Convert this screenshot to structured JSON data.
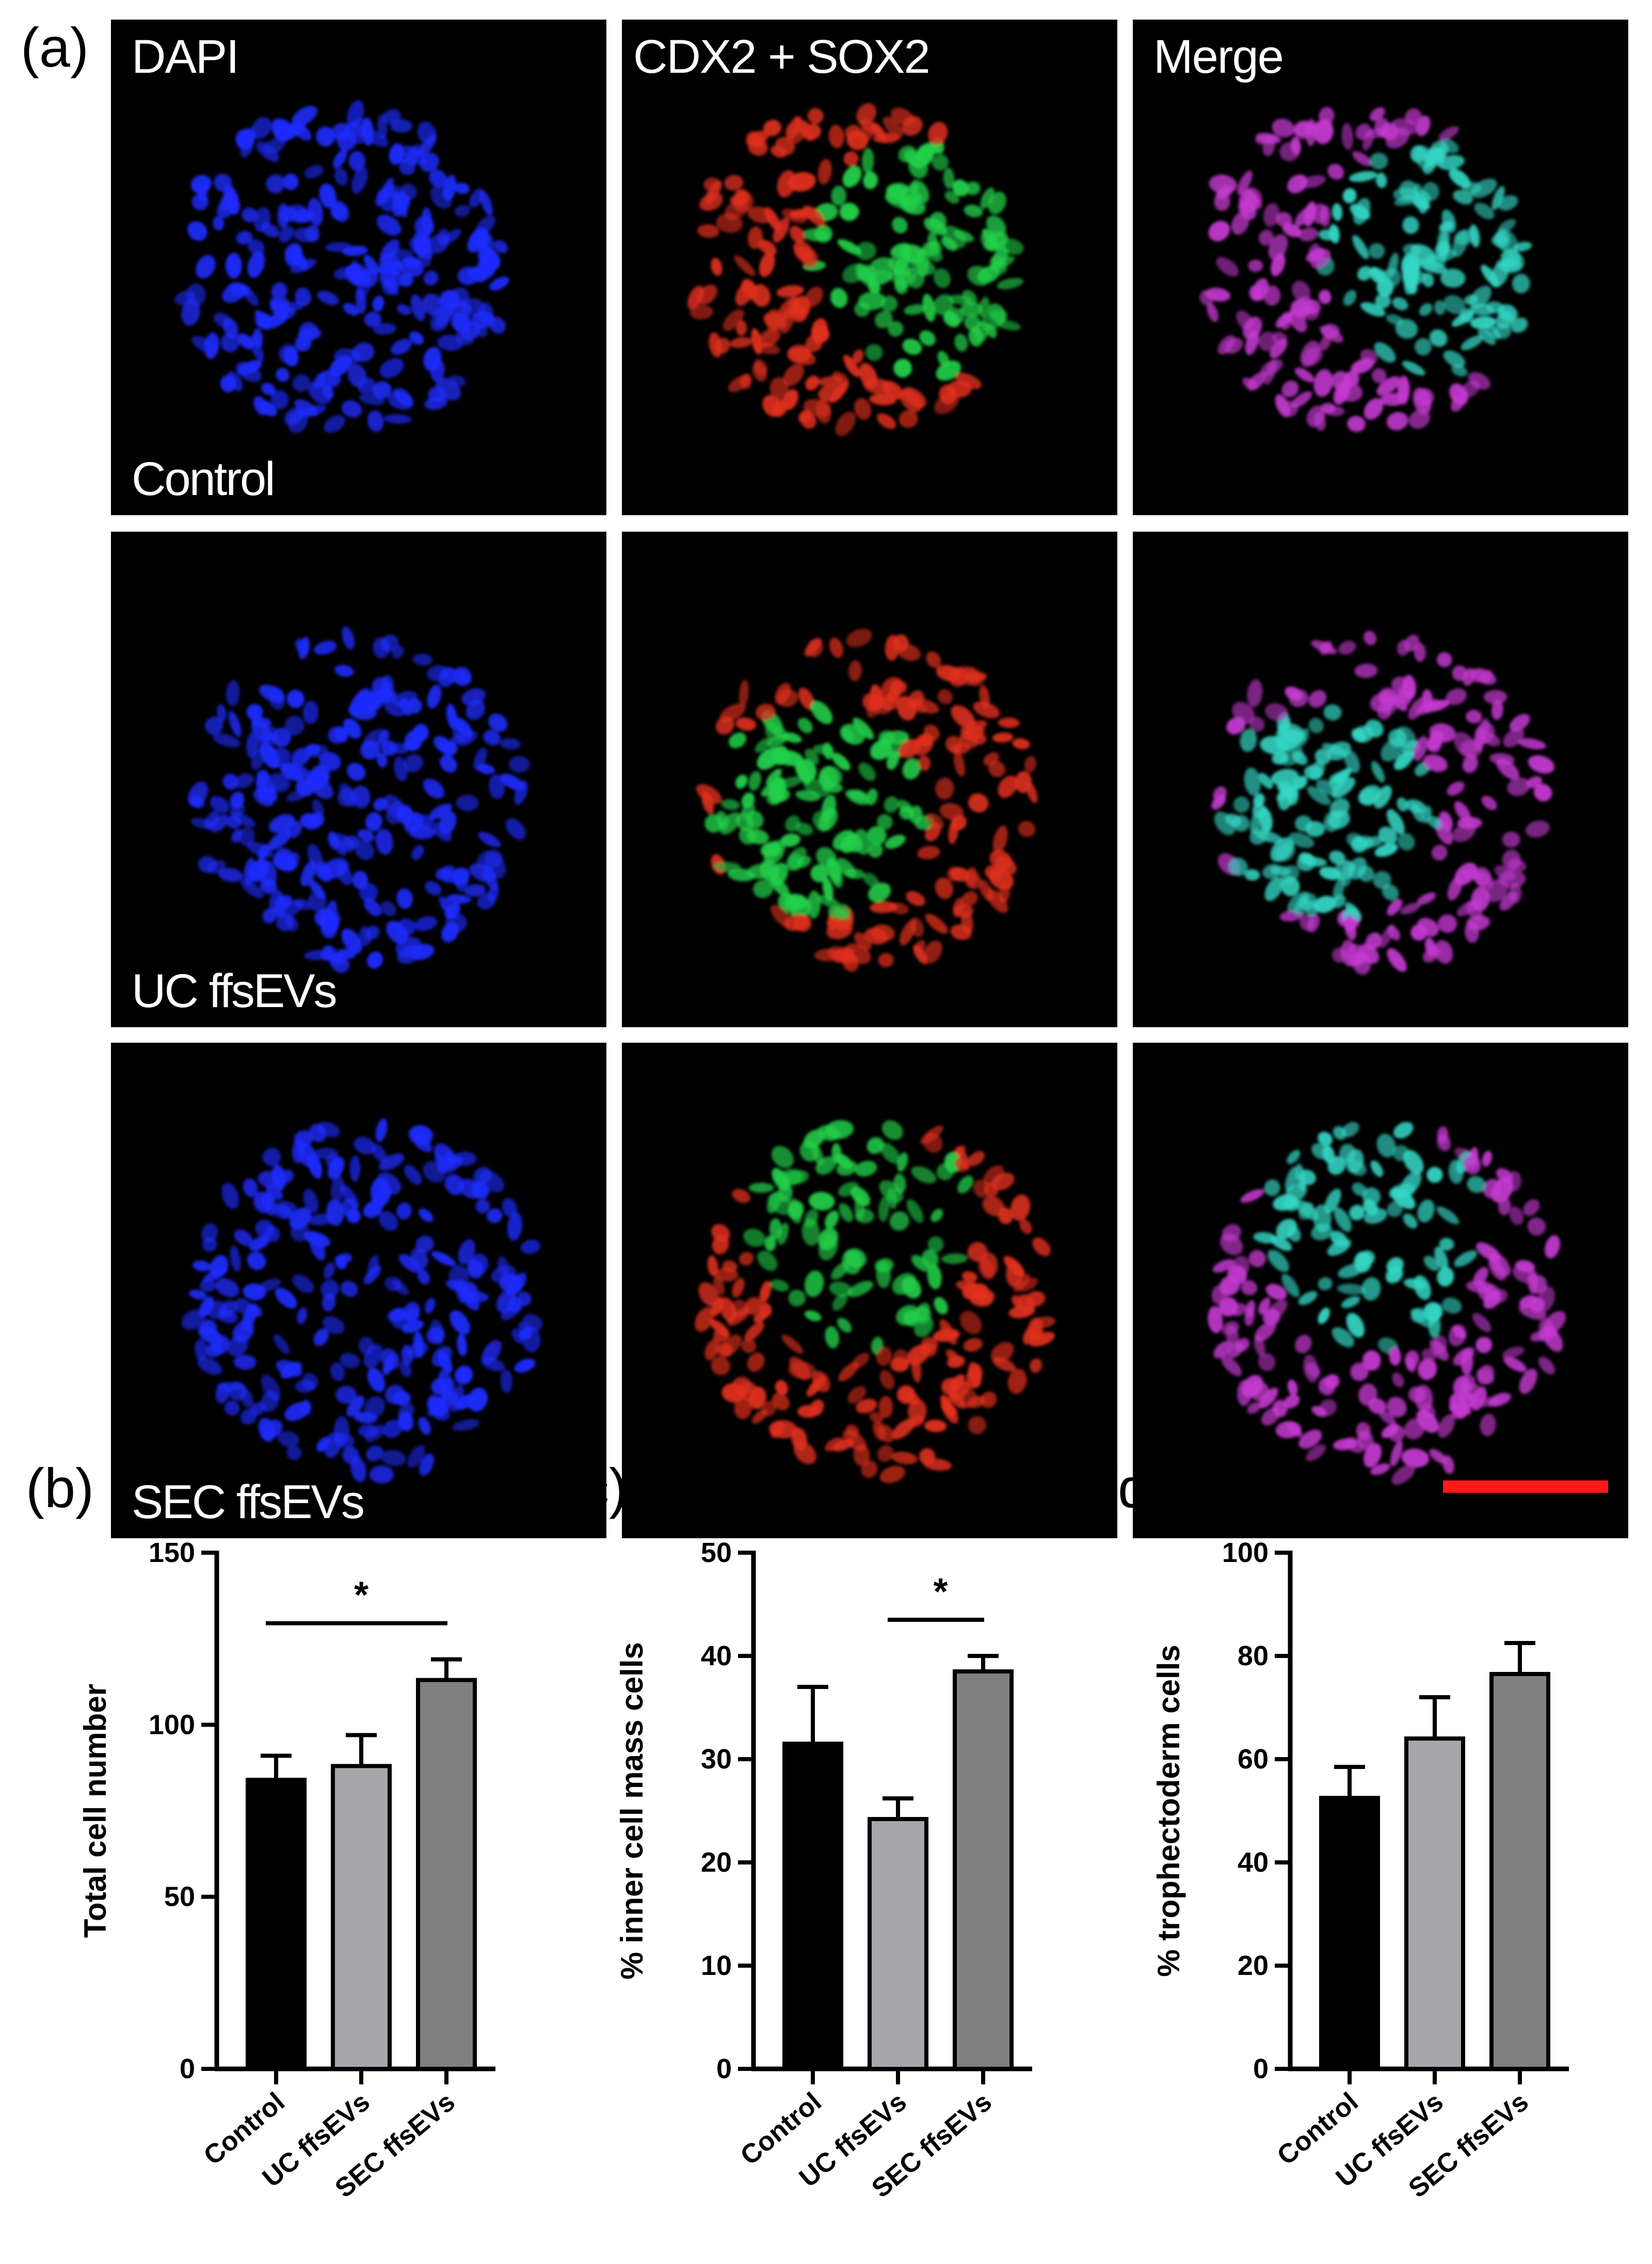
{
  "figure": {
    "panel_a_label": "(a)",
    "column_titles": [
      "DAPI",
      "CDX2 + SOX2",
      "Merge"
    ],
    "row_labels": [
      "Control",
      "UC ffsEVs",
      "SEC ffsEVs"
    ],
    "colors": {
      "dapi": "#1f2cff",
      "cdx2": "#e0301e",
      "sox2": "#22d04a",
      "scale_bar": "#ff1a1a",
      "bar_control": "#000000",
      "bar_uc": "#a6a6ab",
      "bar_sec": "#808080"
    }
  },
  "chart_data": [
    {
      "panel": "(b)",
      "type": "bar",
      "categories": [
        "Control",
        "UC ffsEVs",
        "SEC ffsEVs"
      ],
      "values": [
        84,
        88,
        113
      ],
      "errors": [
        7,
        9,
        6
      ],
      "ylabel": "Total cell number",
      "ylim": [
        0,
        150
      ],
      "yticks": [
        0,
        50,
        100,
        150
      ],
      "significance": [
        {
          "from": 0,
          "to": 2,
          "label": "*"
        }
      ]
    },
    {
      "panel": "(c)",
      "type": "bar",
      "categories": [
        "Control",
        "UC ffsEVs",
        "SEC ffsEVs"
      ],
      "values": [
        31.5,
        24.2,
        38.5
      ],
      "errors": [
        5.5,
        2.0,
        1.5
      ],
      "ylabel": "% inner cell mass cells",
      "ylim": [
        0,
        50
      ],
      "yticks": [
        0,
        10,
        20,
        30,
        40,
        50
      ],
      "significance": [
        {
          "from": 1,
          "to": 2,
          "label": "*"
        }
      ]
    },
    {
      "panel": "(d)",
      "type": "bar",
      "categories": [
        "Control",
        "UC ffsEVs",
        "SEC ffsEVs"
      ],
      "values": [
        52.5,
        64,
        76.5
      ],
      "errors": [
        6,
        8,
        6
      ],
      "ylabel": "% trophectoderm cells",
      "ylim": [
        0,
        100
      ],
      "yticks": [
        0,
        20,
        40,
        60,
        80,
        100
      ],
      "significance": []
    }
  ]
}
